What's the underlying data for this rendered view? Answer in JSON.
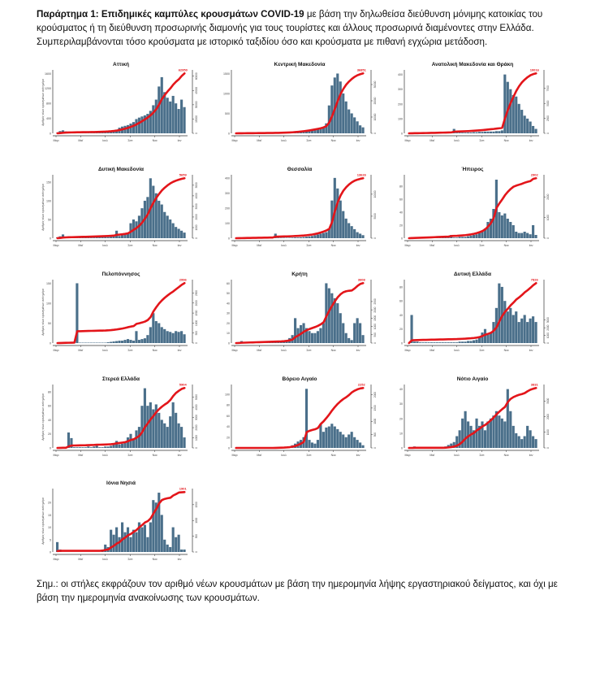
{
  "intro": {
    "bold": "Παράρτημα 1: Επιδημικές καμπύλες κρουσμάτων COVID-19",
    "rest": " με βάση την δηλωθείσα διεύθυνση μόνιμης κατοικίας του κρούσματος ή τη διεύθυνση προσωρινής διαμονής για τους τουρίστες και άλλους προσωρινά διαμένοντες στην Ελλάδα. Συμπεριλαμβάνονται τόσο κρούσματα με ιστορικό ταξιδίου όσο και κρούσματα με πιθανή εγχώρια μετάδοση."
  },
  "note": "Σημ.: οι στήλες εκφράζουν τον αριθμό νέων κρουσμάτων με βάση την ημερομηνία λήψης εργαστηριακού δείγματος, και όχι με βάση την ημερομηνία ανακοίνωσης των κρουσμάτων.",
  "colors": {
    "bars": "#4a6f8a",
    "cumulative": "#e3151a"
  },
  "chart_data": [
    {
      "type": "bar+line",
      "title": "Αττική",
      "ylabel": "Αριθμός νέων κρουσμάτων ανά ημέρα",
      "x_ticks": [
        "Μαρ",
        "Μαϊ",
        "Ιουλ",
        "Σεπ",
        "Νοε",
        "Ιαν"
      ],
      "ylim": [
        0,
        1650
      ],
      "y_ticks": [
        0,
        400,
        800,
        1200,
        1600
      ],
      "right_ticks": [
        0,
        15000,
        30000,
        45000,
        60000
      ],
      "end_label": "62950",
      "values": [
        10,
        60,
        80,
        50,
        30,
        20,
        20,
        15,
        15,
        10,
        10,
        10,
        10,
        15,
        20,
        25,
        30,
        30,
        40,
        60,
        80,
        100,
        150,
        180,
        200,
        220,
        260,
        300,
        380,
        420,
        450,
        480,
        520,
        600,
        750,
        900,
        1250,
        1500,
        1100,
        950,
        850,
        1000,
        800,
        650,
        900,
        700
      ]
    },
    {
      "type": "bar+line",
      "title": "Κεντρική Μακεδονία",
      "ylabel": "",
      "x_ticks": [
        "Μαρ",
        "Μαϊ",
        "Ιουλ",
        "Σεπ",
        "Νοε",
        "Ιαν"
      ],
      "ylim": [
        0,
        1550
      ],
      "y_ticks": [
        0,
        500,
        1000,
        1500
      ],
      "right_ticks": [
        0,
        10000,
        20000,
        30000
      ],
      "end_label": "36851",
      "values": [
        0,
        5,
        10,
        5,
        5,
        5,
        5,
        5,
        5,
        5,
        5,
        5,
        5,
        5,
        10,
        10,
        15,
        15,
        20,
        25,
        30,
        40,
        50,
        60,
        60,
        70,
        80,
        90,
        100,
        110,
        120,
        150,
        250,
        700,
        1200,
        1400,
        1500,
        1300,
        1000,
        800,
        600,
        500,
        400,
        300,
        200,
        150
      ]
    },
    {
      "type": "bar+line",
      "title": "Ανατολική Μακεδονία και Θράκη",
      "ylabel": "",
      "x_ticks": [
        "Μαρ",
        "Μαϊ",
        "Ιουλ",
        "Σεπ",
        "Νοε",
        "Ιαν"
      ],
      "ylim": [
        0,
        420
      ],
      "y_ticks": [
        0,
        100,
        200,
        300,
        400
      ],
      "right_ticks": [
        0,
        2500,
        5000,
        7500
      ],
      "end_label": "10016",
      "values": [
        0,
        2,
        3,
        2,
        2,
        2,
        2,
        2,
        3,
        3,
        3,
        3,
        3,
        3,
        3,
        3,
        30,
        5,
        5,
        5,
        5,
        6,
        6,
        8,
        8,
        10,
        10,
        12,
        12,
        12,
        12,
        15,
        15,
        20,
        400,
        350,
        300,
        260,
        250,
        200,
        160,
        120,
        100,
        80,
        50,
        30
      ]
    },
    {
      "type": "bar+line",
      "title": "Δυτική Μακεδονία",
      "ylabel": "Αριθμός νέων κρουσμάτων ανά ημέρα",
      "x_ticks": [
        "Μαρ",
        "Μαϊ",
        "Ιουλ",
        "Σεπ",
        "Νοε",
        "Ιαν"
      ],
      "ylim": [
        0,
        165
      ],
      "y_ticks": [
        0,
        50,
        100,
        150
      ],
      "right_ticks": [
        0,
        1000,
        2000,
        3000,
        4000,
        5000
      ],
      "end_label": "5659",
      "values": [
        2,
        5,
        10,
        4,
        3,
        2,
        2,
        2,
        2,
        2,
        2,
        2,
        2,
        2,
        3,
        3,
        3,
        3,
        3,
        4,
        5,
        20,
        6,
        8,
        10,
        15,
        40,
        50,
        45,
        60,
        80,
        100,
        110,
        160,
        140,
        120,
        100,
        90,
        70,
        60,
        50,
        40,
        30,
        25,
        20,
        15
      ]
    },
    {
      "type": "bar+line",
      "title": "Θεσσαλία",
      "ylabel": "",
      "x_ticks": [
        "Μαρ",
        "Μαϊ",
        "Ιουλ",
        "Σεπ",
        "Νοε",
        "Ιαν"
      ],
      "ylim": [
        0,
        410
      ],
      "y_ticks": [
        0,
        100,
        200,
        300,
        400
      ],
      "right_ticks": [
        0,
        5000,
        10000
      ],
      "end_label": "13626",
      "values": [
        0,
        2,
        2,
        2,
        2,
        2,
        2,
        2,
        2,
        2,
        2,
        2,
        2,
        2,
        30,
        3,
        3,
        3,
        3,
        3,
        4,
        5,
        5,
        6,
        8,
        10,
        12,
        15,
        20,
        25,
        30,
        35,
        40,
        60,
        250,
        400,
        330,
        250,
        180,
        130,
        100,
        80,
        60,
        40,
        30,
        20
      ]
    },
    {
      "type": "bar+line",
      "title": "Ήπειρος",
      "ylabel": "",
      "x_ticks": [
        "Μαρ",
        "Μαϊ",
        "Ιουλ",
        "Σεπ",
        "Νοε",
        "Ιαν"
      ],
      "ylim": [
        0,
        95
      ],
      "y_ticks": [
        0,
        20,
        40,
        60,
        80
      ],
      "right_ticks": [
        0,
        1000,
        2000
      ],
      "end_label": "2902",
      "values": [
        0,
        1,
        1,
        1,
        1,
        1,
        1,
        1,
        1,
        1,
        1,
        1,
        1,
        1,
        1,
        5,
        1,
        1,
        2,
        2,
        2,
        3,
        4,
        5,
        6,
        8,
        10,
        15,
        25,
        30,
        45,
        90,
        40,
        35,
        38,
        30,
        25,
        20,
        10,
        8,
        8,
        10,
        8,
        6,
        20,
        5
      ]
    },
    {
      "type": "bar+line",
      "title": "Πελοπόννησος",
      "ylabel": "Αριθμός νέων κρουσμάτων ανά ημέρα",
      "x_ticks": [
        "Μαρ",
        "Μαϊ",
        "Ιουλ",
        "Σεπ",
        "Νοε",
        "Ιαν"
      ],
      "ylim": [
        0,
        155
      ],
      "y_ticks": [
        0,
        50,
        100,
        150
      ],
      "right_ticks": [
        0,
        500,
        1000,
        1500,
        2000,
        2500
      ],
      "end_label": "2996",
      "values": [
        0,
        1,
        1,
        1,
        1,
        1,
        1,
        150,
        1,
        1,
        1,
        1,
        1,
        1,
        1,
        1,
        1,
        1,
        2,
        3,
        4,
        5,
        6,
        6,
        8,
        10,
        8,
        6,
        30,
        8,
        10,
        12,
        20,
        40,
        75,
        55,
        50,
        40,
        35,
        30,
        28,
        25,
        30,
        28,
        30,
        22
      ]
    },
    {
      "type": "bar+line",
      "title": "Κρήτη",
      "ylabel": "",
      "x_ticks": [
        "Μαρ",
        "Μαϊ",
        "Ιουλ",
        "Σεπ",
        "Νοε",
        "Ιαν"
      ],
      "ylim": [
        0,
        62
      ],
      "y_ticks": [
        0,
        10,
        20,
        30,
        40,
        50,
        60
      ],
      "right_ticks": [
        0,
        500,
        1000,
        1500,
        2000,
        2500
      ],
      "end_label": "3608",
      "values": [
        0,
        1,
        2,
        1,
        1,
        1,
        1,
        1,
        1,
        1,
        1,
        1,
        1,
        1,
        1,
        1,
        1,
        2,
        3,
        5,
        8,
        25,
        15,
        18,
        20,
        15,
        12,
        10,
        10,
        12,
        15,
        20,
        60,
        55,
        50,
        45,
        40,
        30,
        20,
        10,
        5,
        3,
        20,
        25,
        20,
        8
      ]
    },
    {
      "type": "bar+line",
      "title": "Δυτική Ελλάδα",
      "ylabel": "",
      "x_ticks": [
        "Μαρ",
        "Μαϊ",
        "Ιουλ",
        "Σεπ",
        "Νοε",
        "Ιαν"
      ],
      "ylim": [
        0,
        88
      ],
      "y_ticks": [
        0,
        20,
        40,
        60,
        80
      ],
      "right_ticks": [
        0,
        1000,
        2000,
        3000
      ],
      "end_label": "7826",
      "values": [
        0,
        40,
        2,
        2,
        1,
        1,
        1,
        1,
        1,
        1,
        1,
        1,
        1,
        1,
        1,
        1,
        1,
        1,
        2,
        2,
        2,
        3,
        3,
        4,
        5,
        8,
        15,
        20,
        12,
        15,
        30,
        50,
        85,
        80,
        60,
        45,
        50,
        40,
        45,
        30,
        35,
        40,
        30,
        35,
        38,
        30
      ]
    },
    {
      "type": "bar+line",
      "title": "Στερεά Ελλάδα",
      "ylabel": "Αριθμός νέων κρουσμάτων ανά ημέρα",
      "x_ticks": [
        "Μαρ",
        "Μαϊ",
        "Ιουλ",
        "Σεπ",
        "Νοε",
        "Ιαν"
      ],
      "ylim": [
        0,
        88
      ],
      "y_ticks": [
        0,
        20,
        40,
        60,
        80
      ],
      "right_ticks": [
        0,
        1000,
        2000,
        3000,
        4000,
        5000
      ],
      "end_label": "5904",
      "values": [
        0,
        1,
        1,
        1,
        22,
        14,
        1,
        1,
        1,
        1,
        1,
        2,
        1,
        2,
        3,
        1,
        1,
        2,
        2,
        3,
        5,
        10,
        5,
        6,
        8,
        15,
        20,
        12,
        25,
        30,
        60,
        85,
        60,
        65,
        55,
        62,
        50,
        40,
        35,
        30,
        45,
        65,
        50,
        35,
        30,
        15
      ]
    },
    {
      "type": "bar+line",
      "title": "Βόρειο Αιγαίο",
      "ylabel": "",
      "x_ticks": [
        "Μαρ",
        "Μαϊ",
        "Ιουλ",
        "Σεπ",
        "Νοε",
        "Ιαν"
      ],
      "ylim": [
        0,
        115
      ],
      "y_ticks": [
        0,
        20,
        40,
        60,
        80,
        100
      ],
      "right_ticks": [
        0,
        500,
        1000,
        1500,
        2000
      ],
      "end_label": "2252",
      "values": [
        0,
        0,
        0,
        0,
        0,
        0,
        0,
        0,
        0,
        0,
        0,
        0,
        0,
        0,
        1,
        1,
        1,
        1,
        2,
        3,
        5,
        8,
        12,
        15,
        20,
        110,
        15,
        10,
        8,
        15,
        45,
        30,
        38,
        40,
        45,
        40,
        35,
        30,
        25,
        20,
        25,
        30,
        20,
        15,
        10,
        5
      ]
    },
    {
      "type": "bar+line",
      "title": "Νότιο Αιγαίο",
      "ylabel": "",
      "x_ticks": [
        "Μαρ",
        "Μαϊ",
        "Ιουλ",
        "Σεπ",
        "Νοε",
        "Ιαν"
      ],
      "ylim": [
        0,
        42
      ],
      "y_ticks": [
        0,
        10,
        20,
        30,
        40
      ],
      "right_ticks": [
        0,
        1000,
        2000,
        3000
      ],
      "end_label": "3831",
      "values": [
        0,
        0,
        1,
        0,
        0,
        0,
        0,
        0,
        0,
        0,
        0,
        0,
        0,
        1,
        2,
        3,
        4,
        8,
        12,
        20,
        25,
        18,
        15,
        12,
        20,
        15,
        18,
        12,
        18,
        20,
        22,
        25,
        22,
        20,
        18,
        40,
        25,
        15,
        10,
        8,
        6,
        8,
        15,
        12,
        8,
        6
      ]
    },
    {
      "type": "bar+line",
      "title": "Ιόνια Νησιά",
      "ylabel": "Αριθμός νέων κρουσμάτων ανά ημέρα",
      "x_ticks": [
        "Μαρ",
        "Μαϊ",
        "Ιουλ",
        "Σεπ",
        "Νοε",
        "Ιαν"
      ],
      "ylim": [
        0,
        25
      ],
      "y_ticks": [
        0,
        5,
        10,
        15,
        20
      ],
      "right_ticks": [
        0,
        500,
        1000,
        1500
      ],
      "end_label": "1901",
      "values": [
        4,
        1,
        0,
        0,
        0,
        0,
        0,
        0,
        0,
        0,
        0,
        0,
        0,
        0,
        0,
        0,
        1,
        3,
        2,
        9,
        7,
        10,
        6,
        12,
        8,
        10,
        6,
        9,
        8,
        12,
        10,
        11,
        6,
        12,
        21,
        20,
        24,
        15,
        5,
        3,
        2,
        10,
        6,
        7,
        1,
        1
      ]
    }
  ]
}
